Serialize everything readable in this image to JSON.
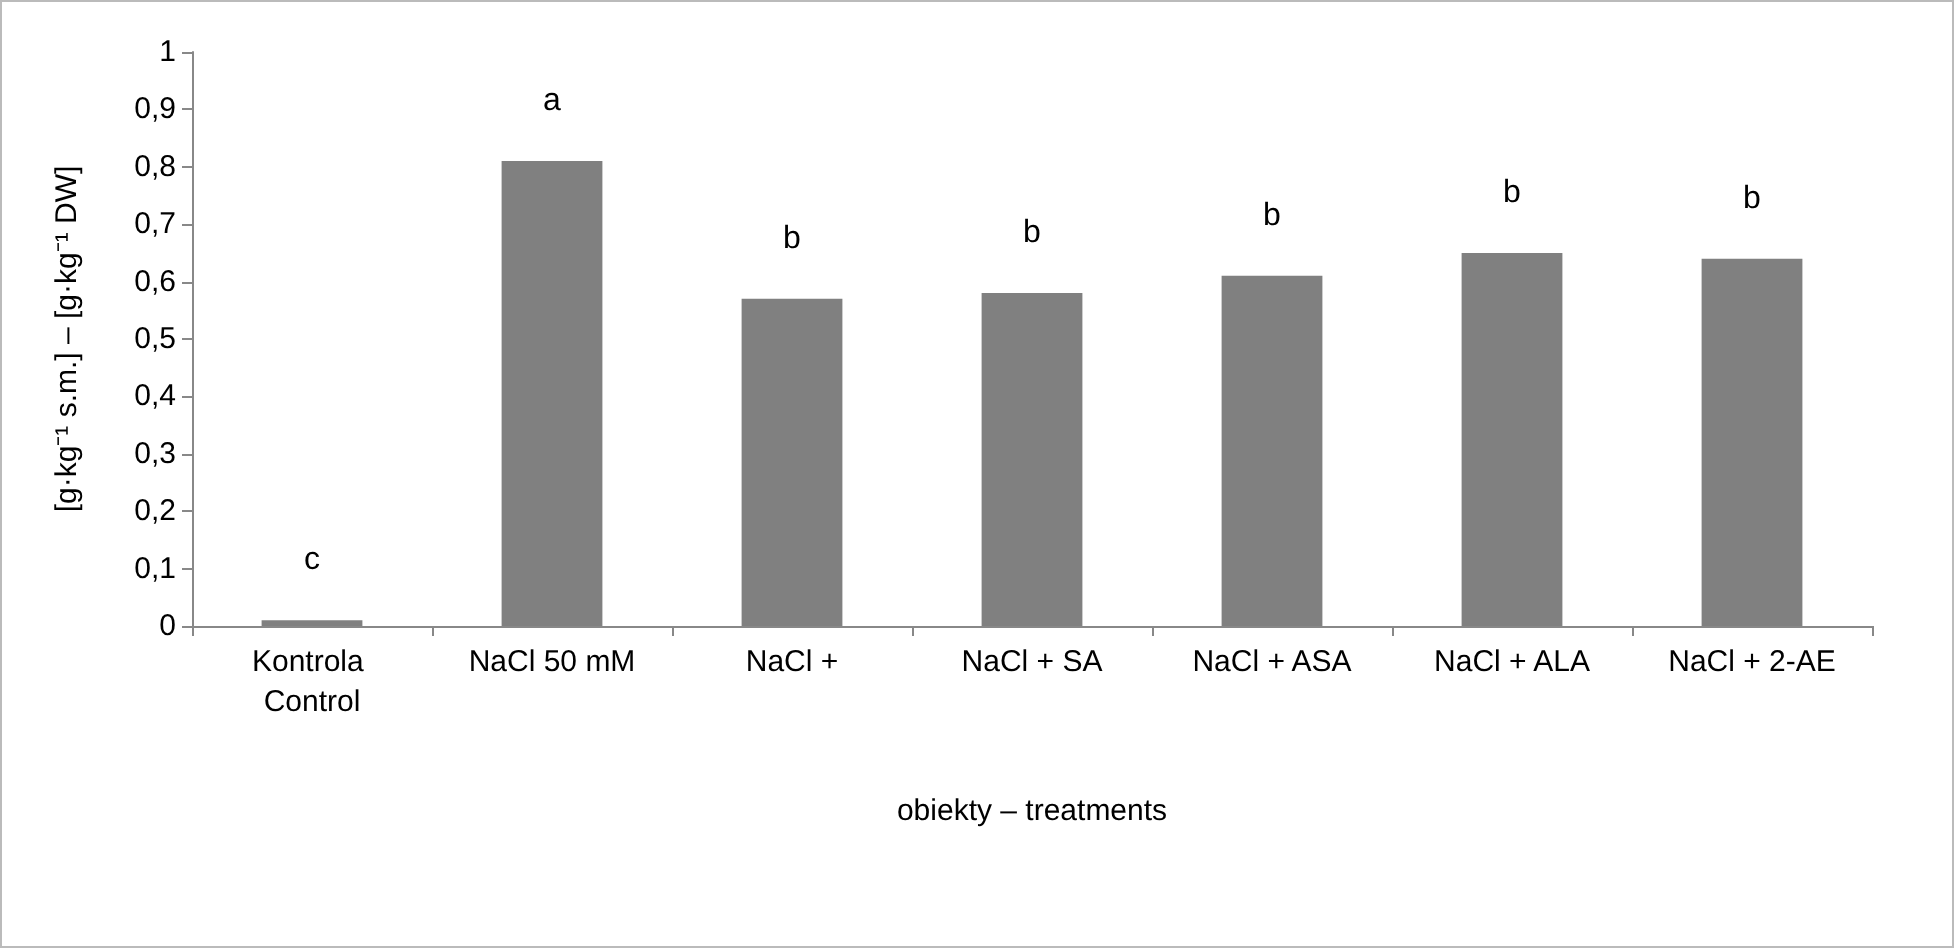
{
  "chart_data": {
    "type": "bar",
    "xlabel": "obiekty – treatments",
    "ylabel": "[g·kg⁻¹ s.m.] – [g·kg⁻¹ DW]",
    "categories": [
      "Kontrola Control",
      "NaCl 50 mM",
      "NaCl +",
      "NaCl + SA",
      "NaCl + ASA",
      "NaCl + ALA",
      "NaCl + 2-AE"
    ],
    "values": [
      0.01,
      0.81,
      0.57,
      0.58,
      0.61,
      0.65,
      0.64
    ],
    "color": "#808080",
    "ylim": [
      0,
      1
    ],
    "yticks": [
      0,
      {
        "value": 0.1,
        "label": "0,1"
      },
      {
        "value": 0.2,
        "label": "0,2"
      },
      {
        "value": 0.3,
        "label": "0,3"
      },
      {
        "value": 0.4,
        "label": "0,4"
      },
      {
        "value": 0.5,
        "label": "0,5"
      },
      {
        "value": 0.6,
        "label": "0,6"
      },
      {
        "value": 0.7,
        "label": "0,7"
      },
      {
        "value": 0.8,
        "label": "0,8"
      },
      {
        "value": 0.9,
        "label": "0,9"
      },
      1
    ],
    "grid": false,
    "annotations": [
      {
        "text": "c",
        "x": "Kontrola Control",
        "y": 0.01
      },
      {
        "text": "a",
        "x": "NaCl 50 mM",
        "y": 0.81
      },
      {
        "text": "b",
        "x": "NaCl +",
        "y": 0.57
      },
      {
        "text": "b",
        "x": "NaCl + SA",
        "y": 0.58
      },
      {
        "text": "b",
        "x": "NaCl + ASA",
        "y": 0.61
      },
      {
        "text": "b",
        "x": "NaCl + ALA",
        "y": 0.65
      },
      {
        "text": "b",
        "x": "NaCl + 2-AE",
        "y": 0.64
      }
    ]
  }
}
